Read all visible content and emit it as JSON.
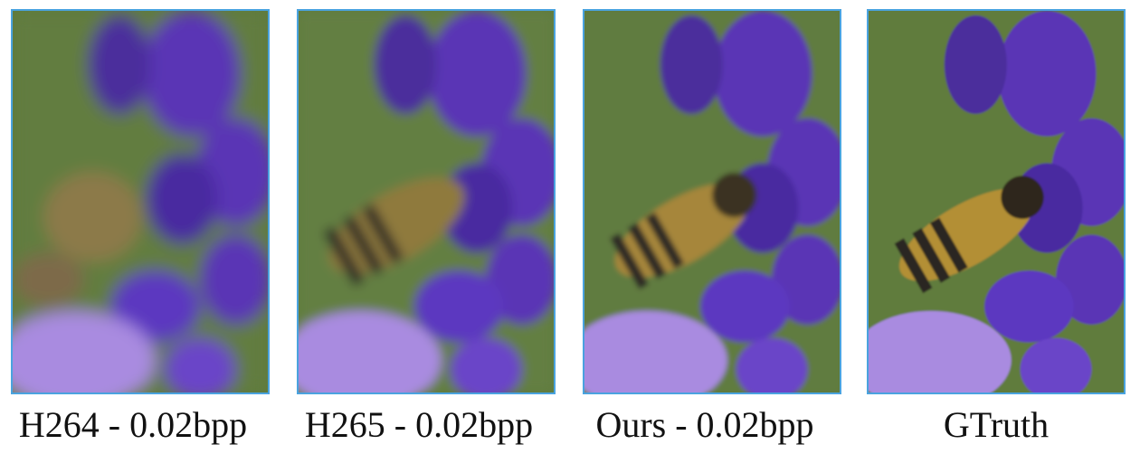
{
  "figure": {
    "panels": [
      {
        "id": "h264",
        "caption": "H264 - 0.02bpp",
        "blur": 9
      },
      {
        "id": "h265",
        "caption": "H265 - 0.02bpp",
        "blur": 6
      },
      {
        "id": "ours",
        "caption": "Ours - 0.02bpp",
        "blur": 3
      },
      {
        "id": "gt",
        "caption": "GTruth",
        "blur": 1
      }
    ]
  },
  "colors": {
    "panel_border": "#4aa3df",
    "background_green": "#5f7a3c",
    "purple_dark": "#4a2aa0",
    "purple_mid": "#6a45c8",
    "purple_light": "#a98be0",
    "bee_body": "#8a6a2a",
    "bee_stripe": "#2e2a26"
  }
}
